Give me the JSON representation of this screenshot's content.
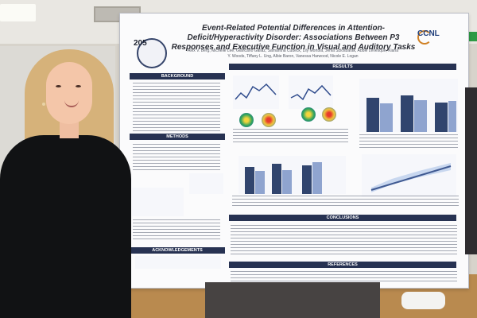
{
  "scene": {
    "poster_number": "205",
    "poster_title": "Event-Related Potential Differences in Attention-Deficit/Hyperactivity Disorder: Associations Between P3 Responses and Executive Function in Visual and Auditory Tasks",
    "authors": "Alex V. Berg, Michelle Lee, Giancarlo Gallaz, Samantha Cudeck, Lily Mortola, Jenia Szlosbarak, Abbie Levesque, Kiana Y. Woods, Tiffany L. Ung, Albie Baron, Vanessa Harwood, Nicole E. Logan",
    "logo_text": "CCNL",
    "sections": {
      "background": "BACKGROUND",
      "methods": "METHODS",
      "results": "RESULTS",
      "conclusions": "CONCLUSIONS",
      "acknowledgements": "ACKNOWLEDGEMENTS",
      "references": "REFERENCES"
    }
  }
}
